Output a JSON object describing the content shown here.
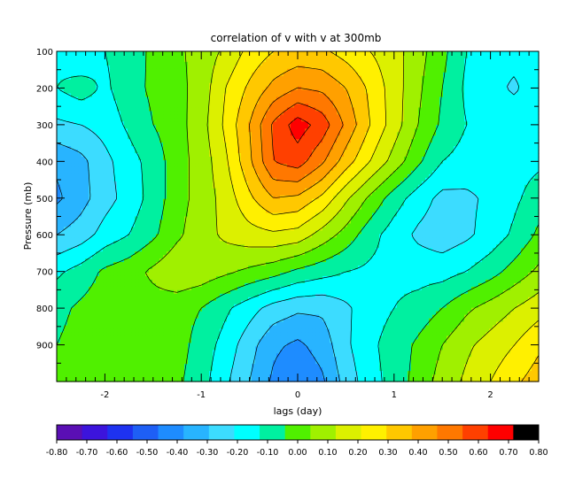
{
  "chart_data": {
    "type": "heatmap",
    "subtype": "filled-contour",
    "title": "correlation of v with v at 300mb",
    "xlabel": "lags (day)",
    "ylabel": "Pressure (mb)",
    "xlim": [
      -2.5,
      2.5
    ],
    "ylim": [
      1000,
      100
    ],
    "x_ticks": [
      -2,
      -1,
      0,
      1,
      2
    ],
    "x_tick_labels": [
      "-2",
      "-1",
      "0",
      "1",
      "2"
    ],
    "y_ticks": [
      100,
      200,
      300,
      400,
      500,
      600,
      700,
      800,
      900
    ],
    "y_tick_labels": [
      "100",
      "200",
      "300",
      "400",
      "500",
      "600",
      "700",
      "800",
      "900"
    ],
    "lags": [
      -2.5,
      -2.25,
      -2.0,
      -1.75,
      -1.5,
      -1.25,
      -1.0,
      -0.75,
      -0.5,
      -0.25,
      0.0,
      0.25,
      0.5,
      0.75,
      1.0,
      1.25,
      1.5,
      1.75,
      2.0,
      2.25,
      2.5
    ],
    "pressure_levels": [
      100,
      200,
      300,
      400,
      500,
      600,
      700,
      800,
      900,
      1000
    ],
    "values": [
      [
        -0.13,
        -0.2,
        -0.1,
        -0.05,
        0.02,
        0.08,
        0.14,
        0.22,
        0.33,
        0.4,
        0.43,
        0.42,
        0.36,
        0.3,
        0.24,
        0.14,
        0.03,
        -0.1,
        -0.18,
        -0.18,
        -0.15
      ],
      [
        -0.1,
        -0.05,
        -0.12,
        -0.04,
        0.02,
        0.07,
        0.14,
        0.3,
        0.42,
        0.53,
        0.6,
        0.58,
        0.5,
        0.38,
        0.25,
        0.12,
        0.0,
        -0.12,
        -0.18,
        -0.21,
        -0.16
      ],
      [
        -0.22,
        -0.2,
        -0.16,
        -0.08,
        0.0,
        0.06,
        0.16,
        0.32,
        0.5,
        0.72,
        0.85,
        0.76,
        0.58,
        0.4,
        0.25,
        0.1,
        -0.02,
        -0.1,
        -0.14,
        -0.16,
        -0.13
      ],
      [
        -0.38,
        -0.33,
        -0.23,
        -0.14,
        -0.06,
        0.06,
        0.14,
        0.28,
        0.48,
        0.7,
        0.75,
        0.62,
        0.45,
        0.3,
        0.16,
        0.02,
        -0.1,
        -0.14,
        -0.14,
        -0.14,
        -0.12
      ],
      [
        -0.42,
        -0.34,
        -0.24,
        -0.16,
        -0.06,
        0.06,
        0.14,
        0.24,
        0.38,
        0.5,
        0.48,
        0.38,
        0.22,
        0.08,
        -0.05,
        -0.15,
        -0.23,
        -0.22,
        -0.18,
        -0.12,
        -0.05
      ],
      [
        -0.3,
        -0.25,
        -0.16,
        -0.1,
        -0.02,
        0.08,
        0.16,
        0.22,
        0.26,
        0.28,
        0.26,
        0.16,
        0.06,
        -0.06,
        -0.15,
        -0.22,
        -0.26,
        -0.22,
        -0.16,
        -0.08,
        0.02
      ],
      [
        -0.12,
        -0.06,
        0.02,
        0.06,
        0.12,
        0.18,
        0.16,
        0.12,
        0.08,
        0.04,
        -0.02,
        -0.06,
        -0.1,
        -0.12,
        -0.13,
        -0.14,
        -0.14,
        -0.1,
        -0.04,
        0.04,
        0.12
      ],
      [
        -0.03,
        0.02,
        0.06,
        0.06,
        0.06,
        0.04,
        0.0,
        -0.08,
        -0.16,
        -0.24,
        -0.28,
        -0.28,
        -0.22,
        -0.14,
        -0.1,
        -0.06,
        0.0,
        0.08,
        0.14,
        0.2,
        0.26
      ],
      [
        0.0,
        0.04,
        0.08,
        0.08,
        0.06,
        0.04,
        -0.04,
        -0.14,
        -0.26,
        -0.38,
        -0.42,
        -0.36,
        -0.22,
        -0.12,
        -0.06,
        0.02,
        0.1,
        0.18,
        0.24,
        0.3,
        0.38
      ],
      [
        0.02,
        0.06,
        0.1,
        0.08,
        0.06,
        0.02,
        -0.06,
        -0.18,
        -0.3,
        -0.42,
        -0.48,
        -0.42,
        -0.26,
        -0.14,
        -0.06,
        0.04,
        0.14,
        0.22,
        0.3,
        0.38,
        0.45
      ]
    ],
    "levels": [
      -0.8,
      -0.7,
      -0.6,
      -0.5,
      -0.4,
      -0.3,
      -0.2,
      -0.1,
      0.0,
      0.1,
      0.2,
      0.3,
      0.4,
      0.5,
      0.6,
      0.7,
      0.8
    ],
    "colorbar_labels": [
      "-0.80",
      "-0.70",
      "-0.60",
      "-0.50",
      "-0.40",
      "-0.30",
      "-0.20",
      "-0.10",
      "0.00",
      "0.10",
      "0.20",
      "0.30",
      "0.40",
      "0.50",
      "0.60",
      "0.70",
      "0.80"
    ],
    "colorbar_colors": [
      "#5a0fb4",
      "#3c14dc",
      "#1e32f0",
      "#1e5ff5",
      "#1e8cff",
      "#28b4ff",
      "#3cdcff",
      "#00ffff",
      "#00f0a0",
      "#50f000",
      "#a0f000",
      "#dcf000",
      "#fff000",
      "#ffc800",
      "#ffa000",
      "#ff7800",
      "#ff4000",
      "#ff0000",
      "#000000"
    ],
    "colorbar_position": "bottom",
    "legend": false
  }
}
